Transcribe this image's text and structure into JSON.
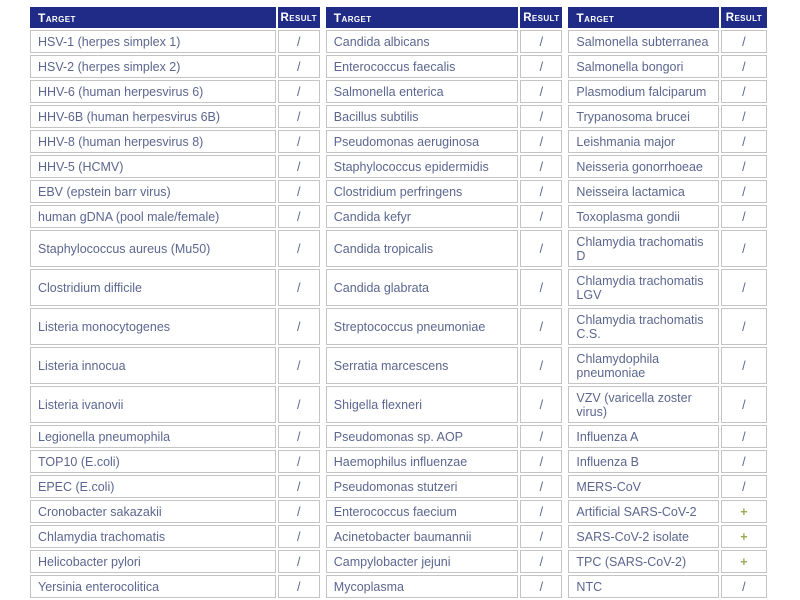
{
  "colors": {
    "header_bg": "#1f2b87",
    "header_text": "#ffffff",
    "cell_text": "#5c668f",
    "border": "#c4c4c4",
    "positive": "#9fa855",
    "page_bg": "#ffffff"
  },
  "table": {
    "header": {
      "target_label": "Target",
      "result_label": "Result"
    },
    "result_symbols": {
      "negative": "/",
      "positive": "+"
    },
    "rows": [
      [
        "HSV-1 (herpes simplex 1)",
        "/",
        "Candida albicans",
        "/",
        "Salmonella subterranea",
        "/"
      ],
      [
        "HSV-2 (herpes simplex 2)",
        "/",
        "Enterococcus faecalis",
        "/",
        "Salmonella bongori",
        "/"
      ],
      [
        "HHV-6 (human herpesvirus 6)",
        "/",
        "Salmonella enterica",
        "/",
        "Plasmodium falciparum",
        "/"
      ],
      [
        "HHV-6B (human herpesvirus 6B)",
        "/",
        "Bacillus subtilis",
        "/",
        "Trypanosoma brucei",
        "/"
      ],
      [
        "HHV-8 (human herpesvirus 8)",
        "/",
        "Pseudomonas aeruginosa",
        "/",
        "Leishmania major",
        "/"
      ],
      [
        "HHV-5 (HCMV)",
        "/",
        "Staphylococcus epidermidis",
        "/",
        "Neisseria gonorrhoeae",
        "/"
      ],
      [
        "EBV (epstein barr virus)",
        "/",
        "Clostridium perfringens",
        "/",
        "Neisseira lactamica",
        "/"
      ],
      [
        "human gDNA (pool male/female)",
        "/",
        "Candida kefyr",
        "/",
        "Toxoplasma gondii",
        "/"
      ],
      [
        "Staphylococcus aureus (Mu50)",
        "/",
        "Candida tropicalis",
        "/",
        "Chlamydia trachomatis D",
        "/"
      ],
      [
        "Clostridium difficile",
        "/",
        "Candida glabrata",
        "/",
        "Chlamydia trachomatis LGV",
        "/"
      ],
      [
        "Listeria monocytogenes",
        "/",
        "Streptococcus pneumoniae",
        "/",
        "Chlamydia trachomatis C.S.",
        "/"
      ],
      [
        "Listeria innocua",
        "/",
        "Serratia marcescens",
        "/",
        "Chlamydophila pneumoniae",
        "/"
      ],
      [
        "Listeria ivanovii",
        "/",
        "Shigella flexneri",
        "/",
        "VZV (varicella zoster virus)",
        "/"
      ],
      [
        "Legionella pneumophila",
        "/",
        "Pseudomonas sp. AOP",
        "/",
        "Influenza A",
        "/"
      ],
      [
        "TOP10 (E.coli)",
        "/",
        "Haemophilus influenzae",
        "/",
        "Influenza B",
        "/"
      ],
      [
        "EPEC (E.coli)",
        "/",
        "Pseudomonas stutzeri",
        "/",
        "MERS-CoV",
        "/"
      ],
      [
        "Cronobacter sakazakii",
        "/",
        "Enterococcus faecium",
        "/",
        "Artificial SARS-CoV-2",
        "+"
      ],
      [
        "Chlamydia trachomatis",
        "/",
        "Acinetobacter baumannii",
        "/",
        "SARS-CoV-2 isolate",
        "+"
      ],
      [
        "Helicobacter pylori",
        "/",
        "Campylobacter jejuni",
        "/",
        "TPC (SARS-CoV-2)",
        "+"
      ],
      [
        "Yersinia enterocolitica",
        "/",
        "Mycoplasma",
        "/",
        "NTC",
        "/"
      ]
    ]
  }
}
